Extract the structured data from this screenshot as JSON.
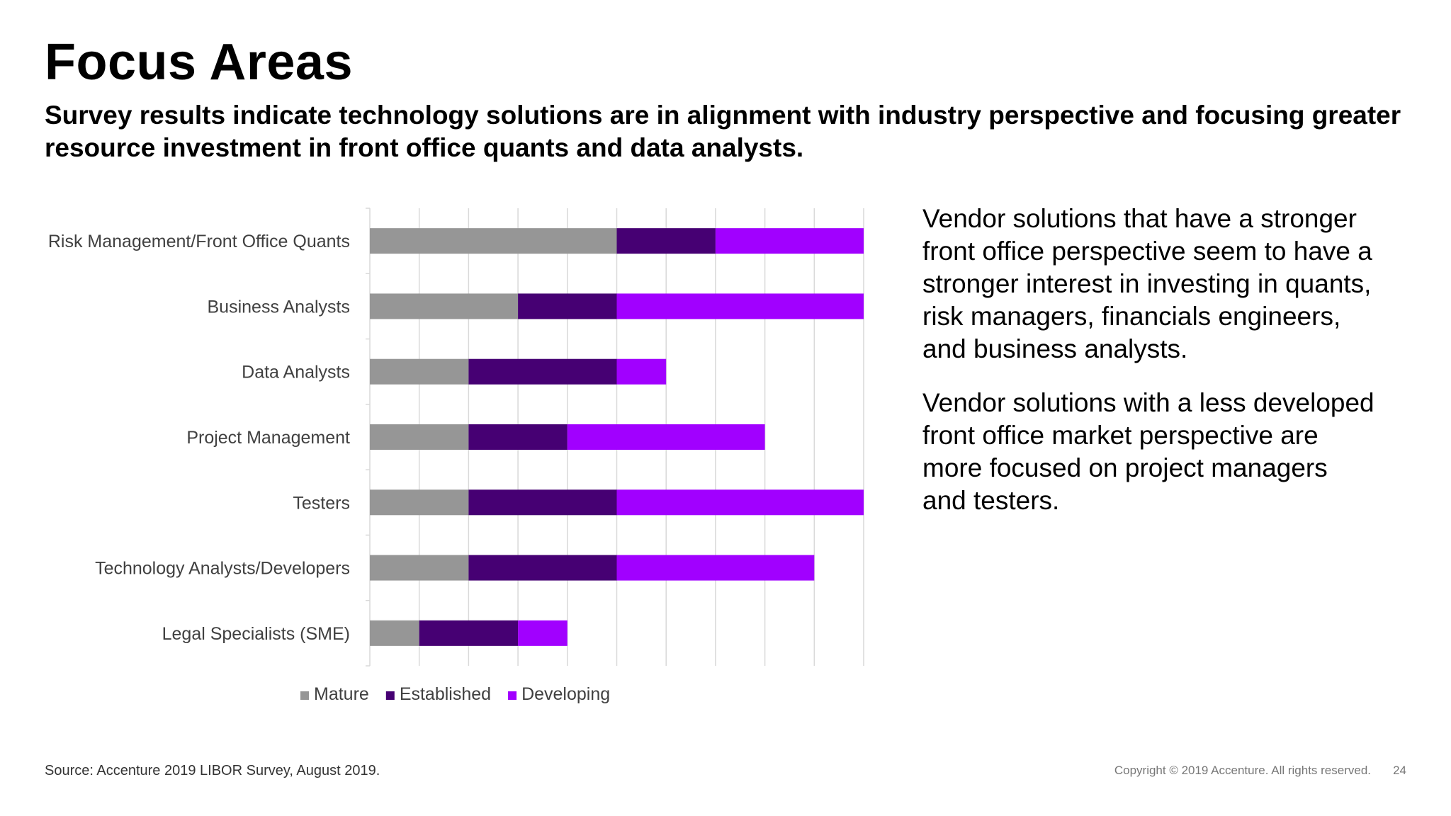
{
  "header": {
    "title": "Focus Areas",
    "subtitle": "Survey results indicate technology solutions are in alignment with industry perspective and focusing greater resource investment in front office quants and data analysts."
  },
  "side_text": {
    "p1": "Vendor solutions that have a stronger front office perspective seem to have a stronger interest in investing in quants, risk managers, financials engineers, and business analysts.",
    "p2": "Vendor solutions with a less developed front office market perspective are more focused on project managers and testers."
  },
  "footer": {
    "source": "Source: Accenture 2019 LIBOR Survey,  August 2019.",
    "copyright": "Copyright © 2019 Accenture. All rights reserved.",
    "page_number": "24"
  },
  "chart_data": {
    "type": "bar",
    "orientation": "horizontal",
    "stacked": true,
    "categories": [
      "Risk Management/Front Office Quants",
      "Business Analysts",
      "Data Analysts",
      "Project Management",
      "Testers",
      "Technology Analysts/Developers",
      "Legal Specialists (SME)"
    ],
    "series": [
      {
        "name": "Mature",
        "color": "#969696",
        "values": [
          5,
          3,
          2,
          2,
          2,
          2,
          1
        ]
      },
      {
        "name": "Established",
        "color": "#460073",
        "values": [
          2,
          2,
          3,
          2,
          3,
          3,
          2
        ]
      },
      {
        "name": "Developing",
        "color": "#a100ff",
        "values": [
          3,
          5,
          1,
          4,
          5,
          4,
          1
        ]
      }
    ],
    "xlim": [
      0,
      10
    ],
    "grid": true,
    "axis_tick_labels_shown": false,
    "legend_position": "bottom"
  }
}
